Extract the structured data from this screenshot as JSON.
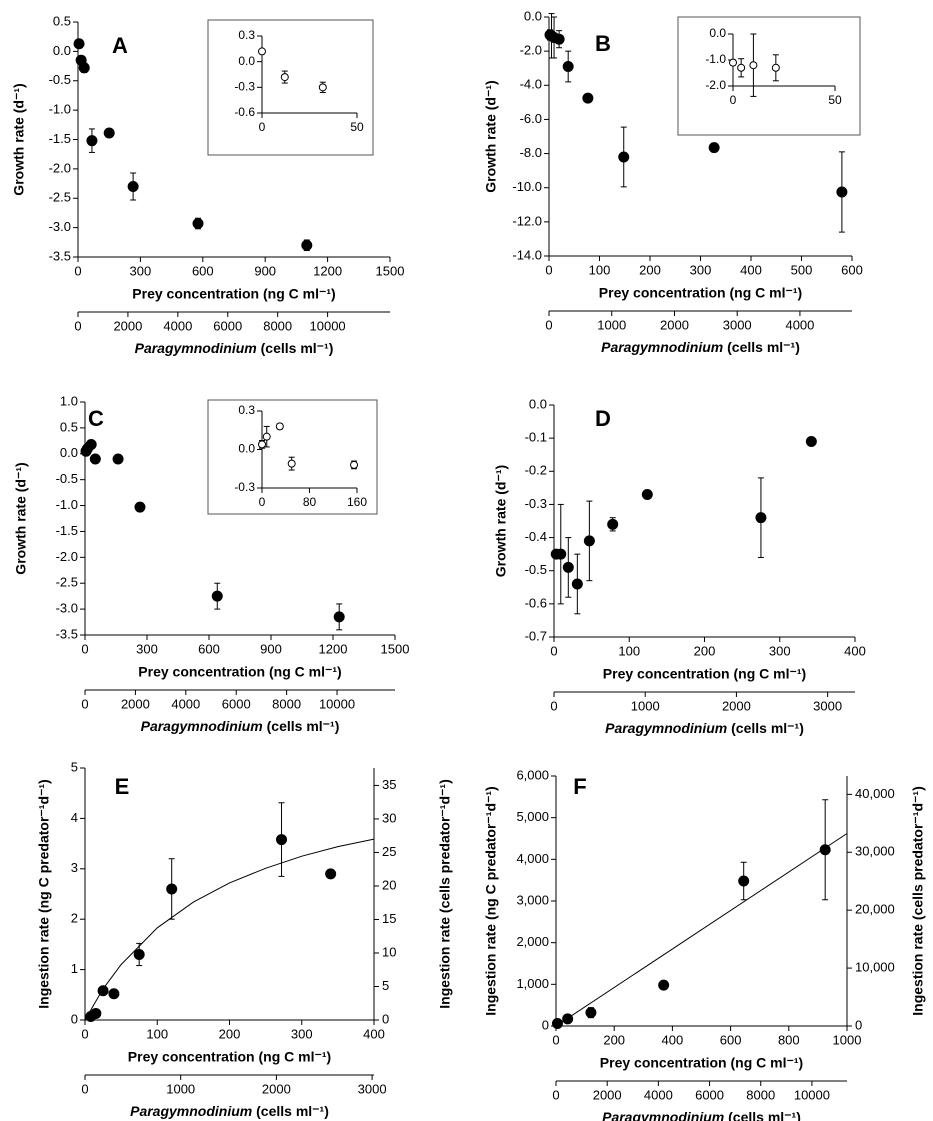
{
  "chart_data": [
    {
      "type": "scatter",
      "panel_label": "A",
      "ylabel": "Growth rate (d⁻¹)",
      "xlabel": "Prey concentration (ng C ml⁻¹)",
      "x2label_italic": "Paragymnodinium",
      "x2label_rest": "(cells ml⁻¹)",
      "color": "#000000",
      "xlim": [
        0,
        1500
      ],
      "xticks": [
        0,
        300,
        600,
        900,
        1200,
        1500
      ],
      "ylim": [
        -3.5,
        0.5
      ],
      "yticks": [
        0.5,
        {
          "value": 0,
          "label": "0.0"
        },
        -0.5,
        {
          "value": -1,
          "label": "-1.0"
        },
        -1.5,
        {
          "value": -2,
          "label": "-2.0"
        },
        -2.5,
        {
          "value": -3,
          "label": "-3.0"
        },
        -3.5
      ],
      "x2lim": [
        0,
        12500
      ],
      "x2ticks": [
        0,
        2000,
        4000,
        6000,
        8000,
        10000
      ],
      "x": [
        5,
        15,
        30,
        67,
        150,
        265,
        577,
        1100
      ],
      "values": [
        0.13,
        -0.15,
        -0.28,
        -1.52,
        -1.39,
        -2.3,
        -2.93,
        -3.3
      ],
      "errors": [
        0.03,
        0.05,
        0.08,
        0.2,
        0.07,
        0.23,
        0.09,
        0.09
      ],
      "inset": {
        "xlim": [
          0,
          50
        ],
        "xticks": [
          0,
          50
        ],
        "ylim": [
          -0.6,
          0.3
        ],
        "yticks": [
          0.3,
          {
            "value": 0,
            "label": "0.0"
          },
          -0.3,
          -0.6
        ],
        "x": [
          0,
          12,
          32
        ],
        "values": [
          0.12,
          -0.18,
          -0.3
        ],
        "errors": [
          0.02,
          0.07,
          0.06
        ]
      }
    },
    {
      "type": "scatter",
      "panel_label": "B",
      "ylabel": "Growth rate (d⁻¹)",
      "xlabel": "Prey concentration (ng C ml⁻¹)",
      "x2label_italic": "Paragymnodinium",
      "x2label_rest": "(cells ml⁻¹)",
      "color": "#000000",
      "xlim": [
        0,
        600
      ],
      "xticks": [
        0,
        100,
        200,
        300,
        400,
        500,
        600
      ],
      "ylim": [
        -14,
        0
      ],
      "yticks": [
        {
          "value": 0,
          "label": "0.0"
        },
        {
          "value": -2,
          "label": "-2.0"
        },
        {
          "value": -4,
          "label": "-4.0"
        },
        {
          "value": -6,
          "label": "-6.0"
        },
        {
          "value": -8,
          "label": "-8.0"
        },
        {
          "value": -10,
          "label": "-10.0"
        },
        {
          "value": -12,
          "label": "-12.0"
        },
        {
          "value": -14,
          "label": "-14.0"
        }
      ],
      "x2lim": [
        0,
        4830
      ],
      "x2ticks": [
        0,
        1000,
        2000,
        3000,
        4000
      ],
      "x": [
        2,
        5,
        10,
        20,
        38,
        77,
        148,
        327,
        580
      ],
      "values": [
        -1.05,
        -1.1,
        -1.2,
        -1.3,
        -2.9,
        -4.75,
        -8.2,
        -7.65,
        -10.25
      ],
      "errors": [
        0.3,
        1.3,
        1.2,
        0.5,
        0.9,
        0.2,
        1.75,
        0.25,
        2.35
      ],
      "inset": {
        "xlim": [
          0,
          50
        ],
        "xticks": [
          0,
          50
        ],
        "ylim": [
          -2,
          0
        ],
        "yticks": [
          {
            "value": 0,
            "label": "0.0"
          },
          {
            "value": -1,
            "label": "-1.0"
          },
          {
            "value": -2,
            "label": "-2.0"
          }
        ],
        "x": [
          0,
          4,
          10,
          21
        ],
        "values": [
          -1.1,
          -1.3,
          -1.2,
          -1.3
        ],
        "errors": [
          0.1,
          0.35,
          1.2,
          0.5
        ]
      }
    },
    {
      "type": "scatter",
      "panel_label": "C",
      "ylabel": "Growth rate (d⁻¹)",
      "xlabel": "Prey concentration (ng C ml⁻¹)",
      "x2label_italic": "Paragymnodinium",
      "x2label_rest": "(cells ml⁻¹)",
      "color": "#000000",
      "xlim": [
        0,
        1500
      ],
      "xticks": [
        0,
        300,
        600,
        900,
        1200,
        1500
      ],
      "ylim": [
        -3.5,
        1
      ],
      "yticks": [
        {
          "value": 1,
          "label": "1.0"
        },
        0.5,
        {
          "value": 0,
          "label": "0.0"
        },
        -0.5,
        {
          "value": -1,
          "label": "-1.0"
        },
        -1.5,
        {
          "value": -2,
          "label": "-2.0"
        },
        -2.5,
        {
          "value": -3,
          "label": "-3.0"
        },
        -3.5
      ],
      "x2lim": [
        0,
        12300
      ],
      "x2ticks": [
        0,
        2000,
        4000,
        6000,
        8000,
        10000
      ],
      "x": [
        5,
        12,
        30,
        50,
        160,
        266,
        640,
        1230
      ],
      "values": [
        0.05,
        0.1,
        0.18,
        -0.1,
        -0.1,
        -1.03,
        -2.75,
        -3.15
      ],
      "errors": [
        0.02,
        0.1,
        0.04,
        0.06,
        0.03,
        0.05,
        0.25,
        0.25
      ],
      "inset": {
        "xlim": [
          0,
          160
        ],
        "xticks": [
          0,
          80,
          160
        ],
        "ylim": [
          -0.3,
          0.3
        ],
        "yticks": [
          0.3,
          {
            "value": 0,
            "label": "0.0"
          },
          -0.3
        ],
        "x": [
          0,
          8,
          30,
          50,
          155
        ],
        "values": [
          0.04,
          0.1,
          0.18,
          -0.11,
          -0.12
        ],
        "errors": [
          0.03,
          0.08,
          0.02,
          0.05,
          0.03
        ]
      }
    },
    {
      "type": "scatter",
      "panel_label": "D",
      "ylabel": "Growth rate (d⁻¹)",
      "xlabel": "Prey concentration (ng C ml⁻¹)",
      "x2label_italic": "Paragymnodinium",
      "x2label_rest": "(cells ml⁻¹)",
      "color": "#000000",
      "xlim": [
        0,
        400
      ],
      "xticks": [
        0,
        100,
        200,
        300,
        400
      ],
      "ylim": [
        -0.7,
        0
      ],
      "yticks": [
        {
          "value": 0,
          "label": "0.0"
        },
        -0.1,
        -0.2,
        -0.3,
        -0.4,
        -0.5,
        -0.6,
        -0.7
      ],
      "x2lim": [
        0,
        3300
      ],
      "x2ticks": [
        0,
        1000,
        2000,
        3000
      ],
      "x": [
        3,
        9,
        19,
        31,
        47,
        78,
        124,
        275,
        342
      ],
      "values": [
        -0.45,
        -0.45,
        -0.49,
        -0.54,
        -0.41,
        -0.36,
        -0.27,
        -0.34,
        -0.11
      ],
      "errors": [
        0,
        0.15,
        0.09,
        0.09,
        0.12,
        0.02,
        0.01,
        0.12,
        0.01
      ]
    },
    {
      "type": "scatter",
      "panel_label": "E",
      "ylabel": "Ingestion rate (ng C predator⁻¹d⁻¹)",
      "y2label": "Ingestion rate (cells predator⁻¹d⁻¹)",
      "xlabel": "Prey concentration (ng C ml⁻¹)",
      "x2label_italic": "Paragymnodinium",
      "x2label_rest": "(cells ml⁻¹)",
      "color": "#000000",
      "xlim": [
        0,
        400
      ],
      "xticks": [
        0,
        100,
        200,
        300,
        400
      ],
      "ylim": [
        0,
        5
      ],
      "yticks": [
        0,
        1,
        2,
        3,
        4,
        5
      ],
      "y2lim": [
        0,
        37.6
      ],
      "y2ticks": [
        0,
        5,
        10,
        15,
        20,
        25,
        30,
        35
      ],
      "x2lim": [
        0,
        3020
      ],
      "x2ticks": [
        0,
        1000,
        2000,
        3000
      ],
      "x": [
        8,
        15,
        25,
        40,
        75,
        120,
        272,
        340
      ],
      "values": [
        0.07,
        0.13,
        0.58,
        0.52,
        1.3,
        2.6,
        3.58,
        2.9
      ],
      "errors": [
        0.02,
        0.03,
        0.05,
        0.08,
        0.22,
        0.6,
        0.73,
        0.07
      ],
      "fit": {
        "x": [
          0,
          25,
          50,
          100,
          150,
          200,
          250,
          300,
          350,
          400
        ],
        "values": [
          0,
          0.62,
          1.1,
          1.83,
          2.34,
          2.72,
          3.01,
          3.25,
          3.44,
          3.59
        ]
      }
    },
    {
      "type": "scatter",
      "panel_label": "F",
      "ylabel": "Ingestion rate (ng C predator⁻¹d⁻¹)",
      "y2label": "Ingestion rate (cells predator⁻¹d⁻¹)",
      "xlabel": "Prey concentration (ng C ml⁻¹)",
      "x2label_italic": "Paragymnodinium",
      "x2label_rest": "(cells ml⁻¹)",
      "color": "#000000",
      "xlim": [
        0,
        1000
      ],
      "xticks": [
        0,
        200,
        400,
        600,
        800,
        1000
      ],
      "ylim": [
        0,
        6000
      ],
      "yticks": [
        0,
        {
          "value": 1000,
          "label": "1,000"
        },
        {
          "value": 2000,
          "label": "2,000"
        },
        {
          "value": 3000,
          "label": "3,000"
        },
        {
          "value": 4000,
          "label": "4,000"
        },
        {
          "value": 5000,
          "label": "5,000"
        },
        {
          "value": 6000,
          "label": "6,000"
        }
      ],
      "y2lim": [
        0,
        43170
      ],
      "y2ticks": [
        0,
        {
          "value": 10000,
          "label": "10,000"
        },
        {
          "value": 20000,
          "label": "20,000"
        },
        {
          "value": 30000,
          "label": "30,000"
        },
        {
          "value": 40000,
          "label": "40,000"
        }
      ],
      "x2lim": [
        0,
        11370
      ],
      "x2ticks": [
        0,
        2000,
        4000,
        6000,
        8000,
        10000
      ],
      "x": [
        5,
        40,
        120,
        370,
        645,
        925
      ],
      "values": [
        60,
        170,
        320,
        980,
        3480,
        4230
      ],
      "errors": [
        30,
        100,
        120,
        20,
        450,
        1200
      ],
      "fit": {
        "x": [
          0,
          1000
        ],
        "values": [
          0,
          4620
        ]
      }
    }
  ]
}
